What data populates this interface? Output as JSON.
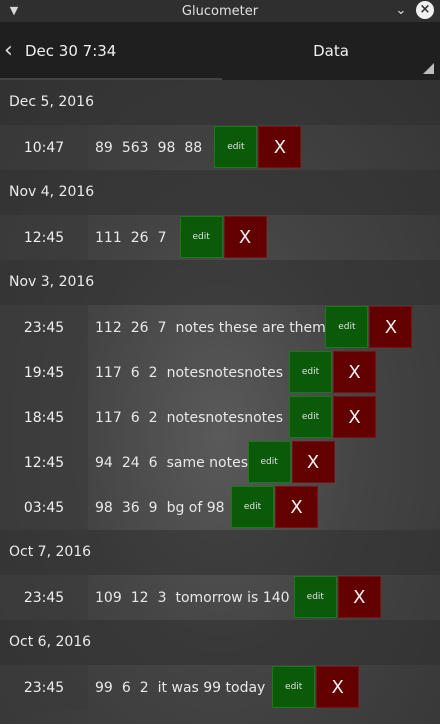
{
  "window": {
    "title": "Glucometer"
  },
  "actionbar": {
    "back_label": "Dec 30 7:34",
    "spinner_label": "Data"
  },
  "buttons": {
    "edit_label": "edit",
    "delete_label": "X"
  },
  "groups": [
    {
      "date": "Dec 5, 2016",
      "rows": [
        {
          "time": "10:47",
          "values": [
            "89",
            "563",
            "98",
            "88"
          ],
          "note": ""
        }
      ]
    },
    {
      "date": "Nov 4, 2016",
      "rows": [
        {
          "time": "12:45",
          "values": [
            "111",
            "26",
            "7"
          ],
          "note": ""
        }
      ]
    },
    {
      "date": "Nov 3, 2016",
      "rows": [
        {
          "time": "23:45",
          "values": [
            "112",
            "26",
            "7"
          ],
          "note": "notes these are them"
        },
        {
          "time": "19:45",
          "values": [
            "117",
            "6",
            "2"
          ],
          "note": "notesnotesnotes"
        },
        {
          "time": "18:45",
          "values": [
            "117",
            "6",
            "2"
          ],
          "note": "notesnotesnotes"
        },
        {
          "time": "12:45",
          "values": [
            "94",
            "24",
            "6"
          ],
          "note": "same notes"
        },
        {
          "time": "03:45",
          "values": [
            "98",
            "36",
            "9"
          ],
          "note": "bg of 98"
        }
      ]
    },
    {
      "date": "Oct 7, 2016",
      "rows": [
        {
          "time": "23:45",
          "values": [
            "109",
            "12",
            "3"
          ],
          "note": "tomorrow is 140"
        }
      ]
    },
    {
      "date": "Oct 6, 2016",
      "rows": [
        {
          "time": "23:45",
          "values": [
            "99",
            "6",
            "2"
          ],
          "note": "it was 99 today"
        }
      ]
    }
  ]
}
